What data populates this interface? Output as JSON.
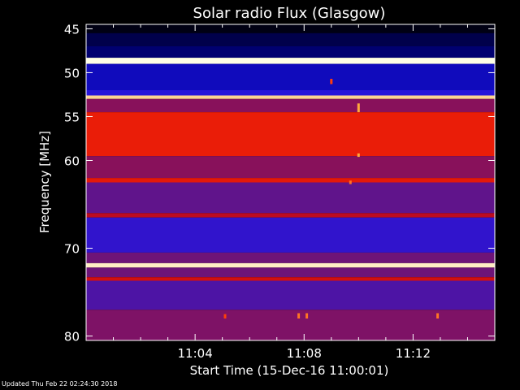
{
  "chart_data": {
    "type": "heatmap",
    "title": "Solar radio Flux (Glasgow)",
    "xlabel": "Start Time (15-Dec-16 11:00:01)",
    "ylabel": "Frequency [MHz]",
    "y_tick_labels": [
      "45",
      "50",
      "55",
      "60",
      "70",
      "80"
    ],
    "y_tick_values": [
      45,
      50,
      55,
      60,
      70,
      80
    ],
    "ylim": [
      44.5,
      80.5
    ],
    "y_reversed": true,
    "x_tick_labels": [
      "11:04",
      "11:08",
      "11:12"
    ],
    "x_tick_minutes": [
      4,
      8,
      12
    ],
    "xlim_minutes": [
      0,
      15
    ],
    "bands": [
      {
        "f0": 44.5,
        "f1": 45.5,
        "level": 0.02
      },
      {
        "f0": 45.5,
        "f1": 47.0,
        "level": 0.08
      },
      {
        "f0": 47.0,
        "f1": 48.3,
        "level": 0.12
      },
      {
        "f0": 48.3,
        "f1": 49.0,
        "level": 1.0
      },
      {
        "f0": 49.0,
        "f1": 52.0,
        "level": 0.22
      },
      {
        "f0": 52.0,
        "f1": 52.6,
        "level": 0.3
      },
      {
        "f0": 52.6,
        "f1": 53.0,
        "level": 0.95
      },
      {
        "f0": 53.0,
        "f1": 54.5,
        "level": 0.5
      },
      {
        "f0": 54.5,
        "f1": 59.5,
        "level": 0.72
      },
      {
        "f0": 59.5,
        "f1": 62.0,
        "level": 0.5
      },
      {
        "f0": 62.0,
        "f1": 62.5,
        "level": 0.7
      },
      {
        "f0": 62.5,
        "f1": 66.0,
        "level": 0.42
      },
      {
        "f0": 66.0,
        "f1": 66.5,
        "level": 0.6
      },
      {
        "f0": 66.5,
        "f1": 70.5,
        "level": 0.32
      },
      {
        "f0": 70.5,
        "f1": 71.7,
        "level": 0.45
      },
      {
        "f0": 71.7,
        "f1": 72.2,
        "level": 0.98
      },
      {
        "f0": 72.2,
        "f1": 73.3,
        "level": 0.45
      },
      {
        "f0": 73.3,
        "f1": 73.7,
        "level": 0.65
      },
      {
        "f0": 73.7,
        "f1": 77.0,
        "level": 0.38
      },
      {
        "f0": 77.0,
        "f1": 80.5,
        "level": 0.48
      }
    ],
    "features": [
      {
        "minute": 10.0,
        "f0": 53.5,
        "f1": 54.5,
        "level": 0.9
      },
      {
        "minute": 10.0,
        "f0": 59.2,
        "f1": 59.6,
        "level": 0.9
      },
      {
        "minute": 9.0,
        "f0": 50.7,
        "f1": 51.3,
        "level": 0.8
      },
      {
        "minute": 9.7,
        "f0": 62.3,
        "f1": 62.7,
        "level": 0.85
      },
      {
        "minute": 5.1,
        "f0": 77.5,
        "f1": 78.0,
        "level": 0.8
      },
      {
        "minute": 7.8,
        "f0": 77.4,
        "f1": 78.0,
        "level": 0.85
      },
      {
        "minute": 8.1,
        "f0": 77.4,
        "f1": 78.0,
        "level": 0.85
      },
      {
        "minute": 12.9,
        "f0": 77.4,
        "f1": 78.0,
        "level": 0.85
      }
    ]
  },
  "footer": {
    "updated": "Updated Thu Feb 22 02:24:30 2018"
  }
}
